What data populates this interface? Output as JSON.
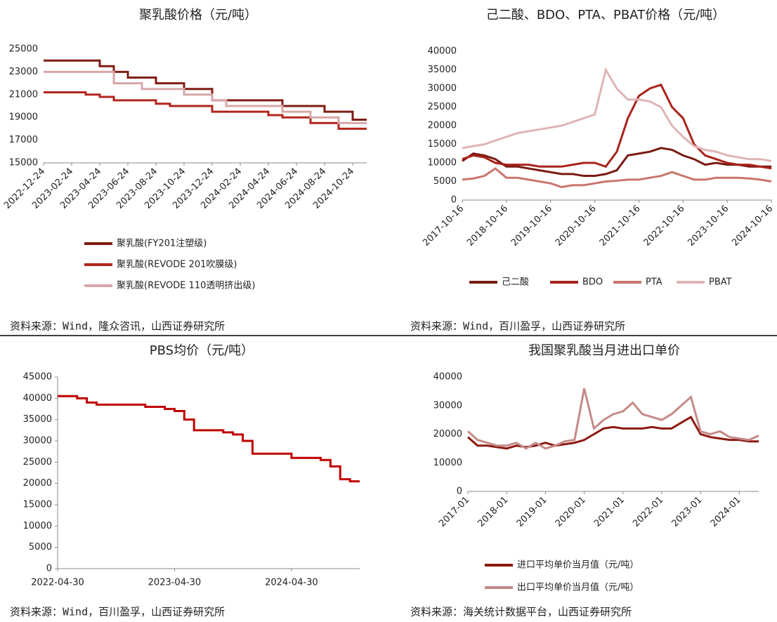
{
  "chart_data": [
    {
      "type": "line",
      "step": true,
      "title": "聚乳酸价格（元/吨）",
      "source": "资料来源：Wind，隆众咨讯，山西证券研究所",
      "x": [
        "2022-12-24",
        "2023-01-24",
        "2023-02-24",
        "2023-03-24",
        "2023-04-24",
        "2023-05-24",
        "2023-06-24",
        "2023-07-24",
        "2023-08-24",
        "2023-09-24",
        "2023-10-24",
        "2023-11-24",
        "2023-12-24",
        "2024-01-24",
        "2024-02-24",
        "2024-03-24",
        "2024-04-24",
        "2024-05-24",
        "2024-06-24",
        "2024-07-24",
        "2024-08-24",
        "2024-09-24",
        "2024-10-24",
        "2024-11-24"
      ],
      "xticks": [
        "2022-12-24",
        "2023-02-24",
        "2023-04-24",
        "2023-06-24",
        "2023-08-24",
        "2023-10-24",
        "2023-12-24",
        "2024-02-24",
        "2024-04-24",
        "2024-06-24",
        "2024-08-24",
        "2024-10-24"
      ],
      "ylim": [
        15000,
        25000
      ],
      "yticks": [
        15000,
        17000,
        19000,
        21000,
        23000,
        25000
      ],
      "legend": "bottom",
      "series": [
        {
          "name": "聚乳酸(FY201注塑级)",
          "color": "#7f1d14",
          "values": [
            24000,
            24000,
            24000,
            24000,
            23500,
            23000,
            22500,
            22500,
            22000,
            22000,
            21500,
            21500,
            20500,
            20500,
            20500,
            20500,
            20500,
            20000,
            20000,
            20000,
            19500,
            19500,
            18800,
            18800
          ]
        },
        {
          "name": "聚乳酸(REVODE 201吹膜级)",
          "color": "#b2261c",
          "values": [
            21200,
            21200,
            21200,
            21000,
            20800,
            20500,
            20500,
            20500,
            20200,
            20000,
            20000,
            20000,
            19500,
            19500,
            19500,
            19500,
            19200,
            19000,
            19000,
            18500,
            18500,
            18000,
            18000,
            18000
          ]
        },
        {
          "name": "聚乳酸(REVODE 110透明挤出级)",
          "color": "#d8a7a8",
          "values": [
            23000,
            23000,
            23000,
            23000,
            23000,
            22000,
            22000,
            21500,
            21500,
            21500,
            21000,
            21000,
            20500,
            20000,
            20000,
            20000,
            20000,
            19500,
            19500,
            19000,
            19000,
            18500,
            18500,
            18500
          ]
        }
      ]
    },
    {
      "type": "line",
      "title": "己二酸、BDO、PTA、PBAT价格（元/吨）",
      "source": "资料来源：Wind，百川盈孚，山西证券研究所",
      "x": [
        "2017-10-16",
        "2018-01-16",
        "2018-04-16",
        "2018-07-16",
        "2018-10-16",
        "2019-01-16",
        "2019-04-16",
        "2019-07-16",
        "2019-10-16",
        "2020-01-16",
        "2020-04-16",
        "2020-07-16",
        "2020-10-16",
        "2021-01-16",
        "2021-04-16",
        "2021-07-16",
        "2021-10-16",
        "2022-01-16",
        "2022-04-16",
        "2022-07-16",
        "2022-10-16",
        "2023-01-16",
        "2023-04-16",
        "2023-07-16",
        "2023-10-16",
        "2024-01-16",
        "2024-04-16",
        "2024-07-16",
        "2024-10-16"
      ],
      "xticks": [
        "2017-10-16",
        "2018-10-16",
        "2019-10-16",
        "2020-10-16",
        "2021-10-16",
        "2022-10-16",
        "2023-10-16",
        "2024-10-16"
      ],
      "ylim": [
        0,
        40000
      ],
      "yticks": [
        0,
        5000,
        10000,
        15000,
        20000,
        25000,
        30000,
        35000,
        40000
      ],
      "legend": "bottom",
      "series": [
        {
          "name": "己二酸",
          "color": "#7a1a12",
          "values": [
            10500,
            12500,
            12000,
            11000,
            9000,
            9000,
            8500,
            8000,
            7500,
            7000,
            7000,
            6500,
            6500,
            7000,
            8000,
            12000,
            12500,
            13000,
            14000,
            13500,
            12000,
            11000,
            9500,
            10000,
            9500,
            9500,
            9000,
            9000,
            9000
          ]
        },
        {
          "name": "BDO",
          "color": "#a8231b",
          "values": [
            11000,
            12000,
            11500,
            10000,
            9500,
            9500,
            9500,
            9000,
            9000,
            9000,
            9500,
            10000,
            10000,
            9000,
            13000,
            22000,
            28000,
            30000,
            31000,
            25000,
            22000,
            15000,
            12000,
            11000,
            10000,
            9500,
            9500,
            9000,
            8500
          ]
        },
        {
          "name": "PTA",
          "color": "#c9756e",
          "values": [
            5500,
            5800,
            6500,
            8500,
            6000,
            6000,
            5500,
            5000,
            4500,
            3500,
            4000,
            4000,
            4500,
            5000,
            5200,
            5500,
            5500,
            6000,
            6500,
            7500,
            6500,
            5500,
            5500,
            6000,
            6000,
            6000,
            5800,
            5500,
            5000
          ]
        },
        {
          "name": "PBAT",
          "color": "#e0b4b4",
          "values": [
            14000,
            14500,
            15000,
            16000,
            17000,
            18000,
            18500,
            19000,
            19500,
            20000,
            21000,
            22000,
            23000,
            35000,
            30000,
            27000,
            27000,
            26500,
            25000,
            20000,
            17000,
            14500,
            13500,
            13000,
            12000,
            11500,
            11000,
            11000,
            10500
          ]
        }
      ]
    },
    {
      "type": "line",
      "step": true,
      "title": "PBS均价（元/吨）",
      "source": "资料来源：Wind，百川盈孚，山西证券研究所",
      "color": "#c00000",
      "x": [
        "2022-04-30",
        "2022-05-31",
        "2022-06-30",
        "2022-07-31",
        "2022-08-31",
        "2022-09-30",
        "2022-10-31",
        "2022-11-30",
        "2022-12-31",
        "2023-01-31",
        "2023-02-28",
        "2023-03-31",
        "2023-04-30",
        "2023-05-31",
        "2023-06-30",
        "2023-07-31",
        "2023-08-31",
        "2023-09-30",
        "2023-10-31",
        "2023-11-30",
        "2023-12-31",
        "2024-01-31",
        "2024-02-29",
        "2024-03-31",
        "2024-04-30",
        "2024-05-31",
        "2024-06-30",
        "2024-07-31",
        "2024-08-31",
        "2024-09-30",
        "2024-10-31",
        "2024-11-30"
      ],
      "xticks": [
        "2022-04-30",
        "2023-04-30",
        "2024-04-30"
      ],
      "ylim": [
        0,
        45000
      ],
      "yticks": [
        0,
        5000,
        10000,
        15000,
        20000,
        25000,
        30000,
        35000,
        40000,
        45000
      ],
      "values": [
        40500,
        40500,
        40000,
        39000,
        38500,
        38500,
        38500,
        38500,
        38500,
        38000,
        38000,
        37500,
        37000,
        35000,
        32500,
        32500,
        32500,
        32000,
        31500,
        30000,
        27000,
        27000,
        27000,
        27000,
        26000,
        26000,
        26000,
        25500,
        24000,
        21000,
        20500,
        20500
      ]
    },
    {
      "type": "line",
      "title": "我国聚乳酸当月进出口单价",
      "source": "资料来源：海关统计数据平台，山西证券研究所",
      "x": [
        "2017-01",
        "2017-04",
        "2017-07",
        "2017-10",
        "2018-01",
        "2018-04",
        "2018-07",
        "2018-10",
        "2019-01",
        "2019-04",
        "2019-07",
        "2019-10",
        "2020-01",
        "2020-04",
        "2020-07",
        "2020-10",
        "2021-01",
        "2021-04",
        "2021-07",
        "2021-10",
        "2022-01",
        "2022-04",
        "2022-07",
        "2022-10",
        "2023-01",
        "2023-04",
        "2023-07",
        "2023-10",
        "2024-01",
        "2024-04",
        "2024-07"
      ],
      "xticks": [
        "2017-01",
        "2018-01",
        "2019-01",
        "2020-01",
        "2021-01",
        "2022-01",
        "2023-01",
        "2024-01"
      ],
      "ylim": [
        0,
        40000
      ],
      "yticks": [
        0,
        10000,
        20000,
        30000,
        40000
      ],
      "legend": "bottom",
      "series": [
        {
          "name": "进口平均单价当月值（元/吨）",
          "color": "#8b1a10",
          "values": [
            19000,
            16000,
            16000,
            15500,
            15000,
            16000,
            15500,
            16000,
            17000,
            16000,
            16500,
            17000,
            18000,
            20000,
            22000,
            22500,
            22000,
            22000,
            22000,
            22500,
            22000,
            22000,
            24000,
            26000,
            20000,
            19000,
            18500,
            18000,
            18000,
            17500,
            17500
          ]
        },
        {
          "name": "出口平均单价当月值（元/吨）",
          "color": "#c48a88",
          "values": [
            21000,
            18000,
            17000,
            16000,
            16000,
            17000,
            15000,
            17000,
            15000,
            16000,
            17500,
            18000,
            36000,
            22000,
            25000,
            27000,
            28000,
            31000,
            27000,
            26000,
            25000,
            27000,
            30000,
            33000,
            21000,
            20000,
            21000,
            19000,
            18500,
            18000,
            19500
          ]
        }
      ]
    }
  ]
}
